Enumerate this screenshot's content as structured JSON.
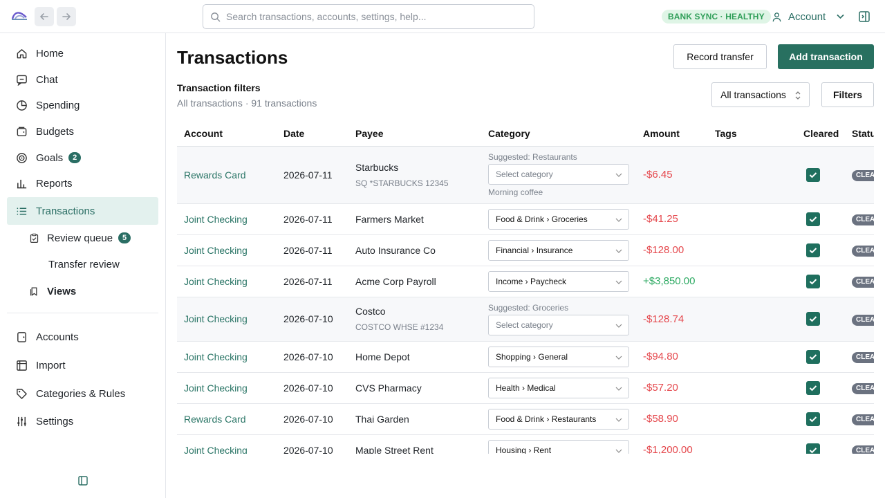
{
  "header": {
    "search_placeholder": "Search transactions, accounts, settings, help...",
    "sync_status": "BANK SYNC · HEALTHY",
    "account_label": "Account"
  },
  "sidebar": {
    "items": [
      {
        "label": "Home",
        "icon": "home-icon"
      },
      {
        "label": "Chat",
        "icon": "chat-icon"
      },
      {
        "label": "Spending",
        "icon": "pie-chart-icon"
      },
      {
        "label": "Budgets",
        "icon": "wallet-icon"
      },
      {
        "label": "Goals",
        "icon": "target-icon",
        "badge": "2"
      },
      {
        "label": "Reports",
        "icon": "bar-chart-icon"
      },
      {
        "label": "Transactions",
        "icon": "list-icon",
        "active": true
      },
      {
        "label": "Review queue",
        "icon": "clipboard-icon",
        "badge": "5"
      },
      {
        "label": "Transfer review"
      },
      {
        "label": "Views",
        "icon": "bookmark-icon"
      },
      {
        "label": "Accounts",
        "icon": "account-icon"
      },
      {
        "label": "Import",
        "icon": "import-icon"
      },
      {
        "label": "Categories & Rules",
        "icon": "tag-icon"
      },
      {
        "label": "Settings",
        "icon": "sliders-icon"
      }
    ]
  },
  "main": {
    "title": "Transactions",
    "record_transfer": "Record transfer",
    "add_transaction": "Add transaction",
    "filters_title": "Transaction filters",
    "filters_summary": "All transactions · 91 transactions",
    "view_select": "All transactions",
    "filters_button": "Filters"
  },
  "table": {
    "headers": [
      "Account",
      "Date",
      "Payee",
      "Category",
      "Amount",
      "Tags",
      "Cleared",
      "Status"
    ],
    "category_placeholder": "Select category",
    "status_label": "CLEARED",
    "rows": [
      {
        "account": "Rewards Card",
        "date": "2026-07-11",
        "payee": "Starbucks",
        "payee_sub": "SQ *STARBUCKS 12345",
        "suggested": "Suggested: Restaurants",
        "category": "",
        "note": "Morning coffee",
        "amount": "-$6.45",
        "sign": "neg"
      },
      {
        "account": "Joint Checking",
        "date": "2026-07-11",
        "payee": "Farmers Market",
        "category": "Food & Drink › Groceries",
        "amount": "-$41.25",
        "sign": "neg"
      },
      {
        "account": "Joint Checking",
        "date": "2026-07-11",
        "payee": "Auto Insurance Co",
        "category": "Financial › Insurance",
        "amount": "-$128.00",
        "sign": "neg"
      },
      {
        "account": "Joint Checking",
        "date": "2026-07-11",
        "payee": "Acme Corp Payroll",
        "category": "Income › Paycheck",
        "amount": "+$3,850.00",
        "sign": "pos"
      },
      {
        "account": "Joint Checking",
        "date": "2026-07-10",
        "payee": "Costco",
        "payee_sub": "COSTCO WHSE #1234",
        "suggested": "Suggested: Groceries",
        "category": "",
        "amount": "-$128.74",
        "sign": "neg"
      },
      {
        "account": "Joint Checking",
        "date": "2026-07-10",
        "payee": "Home Depot",
        "category": "Shopping › General",
        "amount": "-$94.80",
        "sign": "neg"
      },
      {
        "account": "Joint Checking",
        "date": "2026-07-10",
        "payee": "CVS Pharmacy",
        "category": "Health › Medical",
        "amount": "-$57.20",
        "sign": "neg"
      },
      {
        "account": "Rewards Card",
        "date": "2026-07-10",
        "payee": "Thai Garden",
        "category": "Food & Drink › Restaurants",
        "amount": "-$58.90",
        "sign": "neg"
      },
      {
        "account": "Joint Checking",
        "date": "2026-07-10",
        "payee": "Maple Street Rent",
        "category": "Housing › Rent",
        "amount": "-$1,200.00",
        "sign": "neg"
      }
    ]
  }
}
